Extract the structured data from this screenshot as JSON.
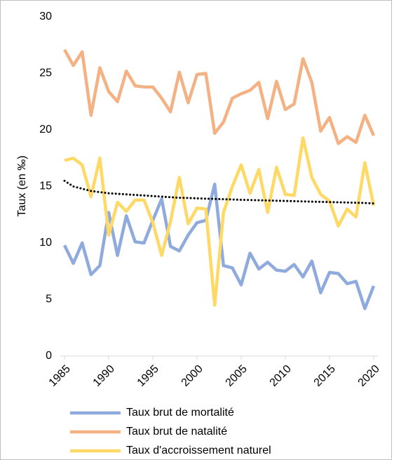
{
  "chart_data": {
    "type": "line",
    "ylabel": "Taux (en ‰)",
    "x": [
      1985,
      1986,
      1987,
      1988,
      1989,
      1990,
      1991,
      1992,
      1993,
      1994,
      1995,
      1996,
      1997,
      1998,
      1999,
      2000,
      2001,
      2002,
      2003,
      2004,
      2005,
      2006,
      2007,
      2008,
      2009,
      2010,
      2011,
      2012,
      2013,
      2014,
      2015,
      2016,
      2017,
      2018,
      2019,
      2020
    ],
    "series": [
      {
        "name": "Taux brut de mortalité",
        "color": "#8faadc",
        "values": [
          9.8,
          8.2,
          10.0,
          7.2,
          8.0,
          12.7,
          8.9,
          12.4,
          10.1,
          10.0,
          12.0,
          13.9,
          9.7,
          9.3,
          10.7,
          11.8,
          12.0,
          15.2,
          8.0,
          7.8,
          6.3,
          9.1,
          7.7,
          8.3,
          7.6,
          7.5,
          8.1,
          7.0,
          8.4,
          5.6,
          7.4,
          7.3,
          6.4,
          6.6,
          4.2,
          6.2
        ]
      },
      {
        "name": "Taux brut de natalité",
        "color": "#f4b183",
        "values": [
          27.1,
          25.7,
          26.9,
          21.3,
          25.5,
          23.4,
          22.5,
          25.2,
          23.9,
          23.8,
          23.8,
          22.8,
          21.6,
          25.1,
          22.4,
          24.9,
          25.0,
          19.7,
          20.7,
          22.8,
          23.2,
          23.5,
          24.2,
          21.0,
          24.3,
          21.8,
          22.3,
          26.3,
          24.2,
          19.9,
          21.1,
          18.8,
          19.4,
          18.9,
          21.3,
          19.5
        ]
      },
      {
        "name": "Taux d'accroissement naturel",
        "color": "#ffd966",
        "values": [
          17.3,
          17.5,
          16.9,
          14.1,
          17.5,
          10.7,
          13.6,
          12.8,
          13.8,
          13.8,
          11.8,
          8.9,
          11.9,
          15.8,
          11.7,
          13.1,
          13.0,
          4.5,
          12.7,
          15.0,
          16.9,
          14.4,
          16.5,
          12.7,
          16.7,
          14.3,
          14.2,
          19.3,
          15.8,
          14.3,
          13.7,
          11.5,
          13.0,
          12.3,
          17.1,
          13.3
        ]
      },
      {
        "color": "#000000",
        "dotted": true,
        "values": [
          15.5,
          15.0,
          14.8,
          14.6,
          14.5,
          14.4,
          14.35,
          14.3,
          14.25,
          14.2,
          14.15,
          14.1,
          14.05,
          14.0,
          13.98,
          13.95,
          13.92,
          13.9,
          13.87,
          13.85,
          13.82,
          13.8,
          13.78,
          13.76,
          13.74,
          13.72,
          13.7,
          13.68,
          13.66,
          13.64,
          13.62,
          13.6,
          13.58,
          13.56,
          13.54,
          13.5
        ]
      }
    ],
    "xlim": [
      1985,
      2020
    ],
    "xticks": [
      1985,
      1990,
      1995,
      2000,
      2005,
      2010,
      2015,
      2020
    ],
    "ylim": [
      0,
      30
    ],
    "yticks": [
      0,
      5,
      10,
      15,
      20,
      25,
      30
    ]
  }
}
